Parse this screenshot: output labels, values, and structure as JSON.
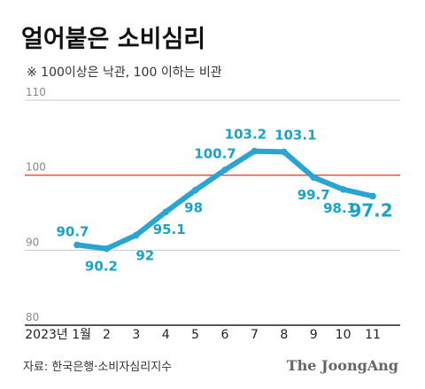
{
  "chart_data": {
    "type": "line",
    "title": "얼어붙은 소비심리",
    "subtitle": "※ 100이상은 낙관, 100 이하는 비관",
    "categories": [
      "2023년 1월",
      "2",
      "3",
      "4",
      "5",
      "6",
      "7",
      "8",
      "9",
      "10",
      "11"
    ],
    "series": [
      {
        "values": [
          90.7,
          90.2,
          92,
          95.1,
          98,
          100.7,
          103.2,
          103.1,
          99.7,
          98.1,
          97.2
        ],
        "labels": [
          "90.7",
          "90.2",
          "92",
          "95.1",
          "98",
          "100.7",
          "103.2",
          "103.1",
          "99.7",
          "98.1",
          "97.2"
        ]
      }
    ],
    "ylim": [
      80,
      110
    ],
    "yticks": [
      "80",
      "90",
      "100",
      "110"
    ],
    "reference_line": 100,
    "grid": true,
    "legend": "none",
    "colors": {
      "line": "#2aa4d5",
      "label": "#1aa3c9",
      "reference": "#e34a2f",
      "grid": "#c8c8c8",
      "axis": "#222222"
    }
  },
  "source": "자료: 한국은행·소비자심리지수",
  "brand": "The JoongAng"
}
